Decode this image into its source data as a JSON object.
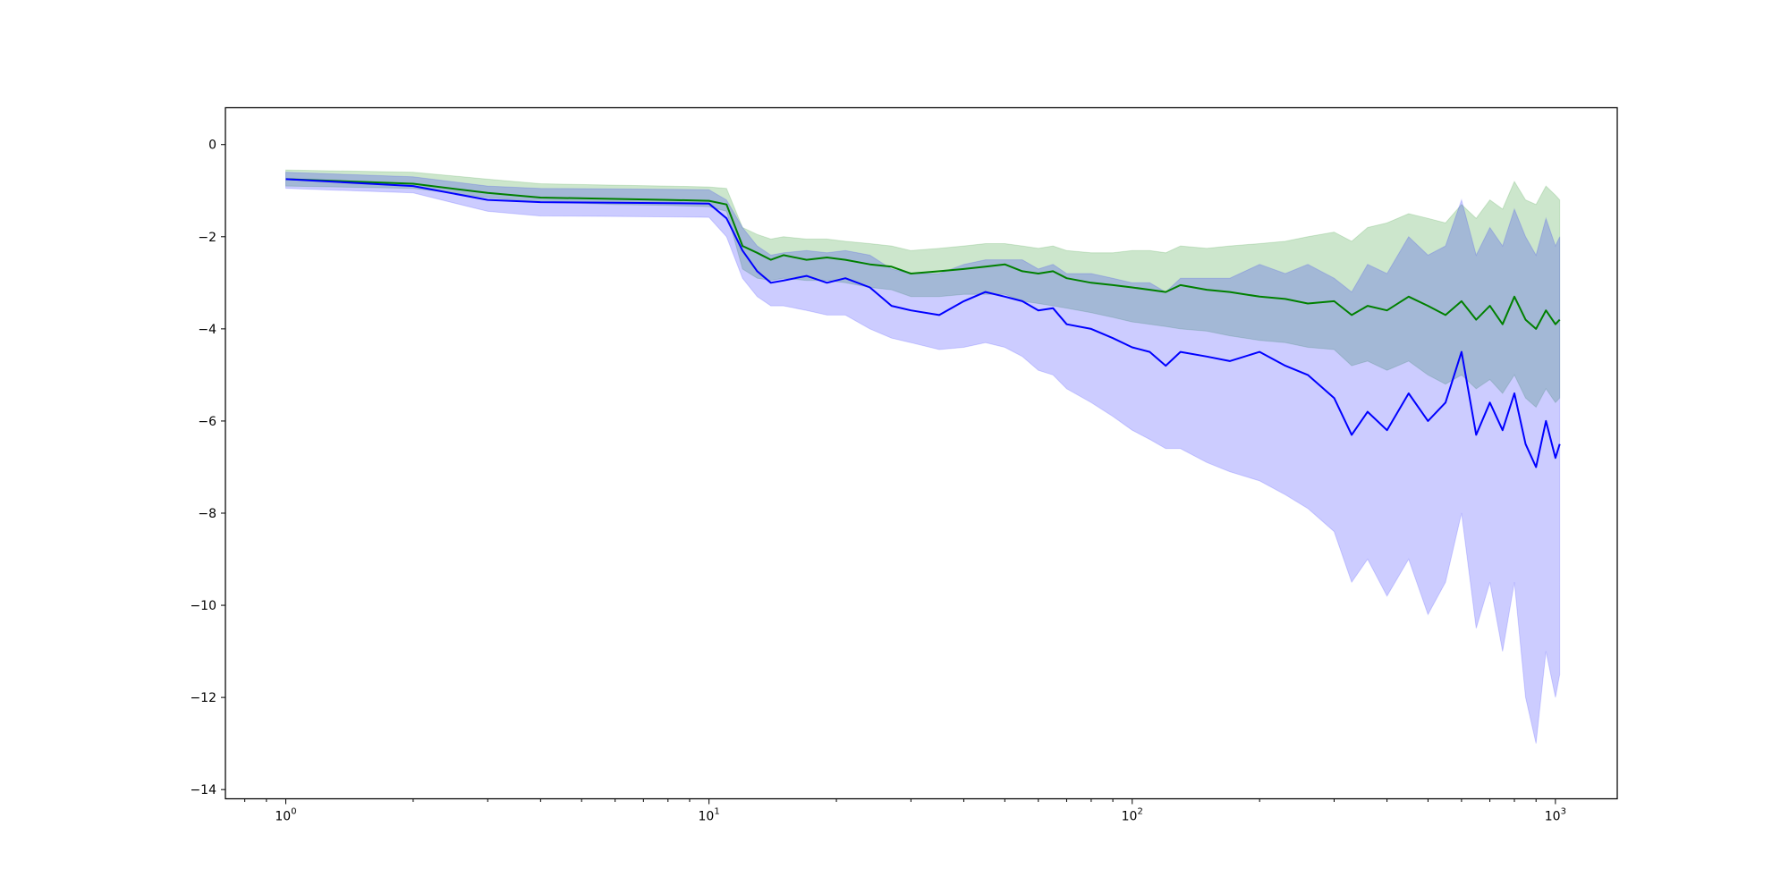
{
  "colors": {
    "green_line": "#008000",
    "green_band": "#008000",
    "blue_line": "#0000ff",
    "blue_band": "#0000ff",
    "background": "#ffffff"
  },
  "chart_data": {
    "type": "line",
    "title": "",
    "xlabel": "",
    "ylabel": "",
    "xscale": "log",
    "xlim": [
      0.72,
      1400
    ],
    "ylim": [
      -14.2,
      0.8
    ],
    "grid": false,
    "legend": "none",
    "x_tick_labels": [
      {
        "base": "10",
        "exp": "0",
        "value": 1
      },
      {
        "base": "10",
        "exp": "1",
        "value": 10
      },
      {
        "base": "10",
        "exp": "2",
        "value": 100
      },
      {
        "base": "10",
        "exp": "3",
        "value": 1000
      }
    ],
    "y_ticks": [
      0,
      -2,
      -4,
      -6,
      -8,
      -10,
      -12,
      -14
    ],
    "series": [
      {
        "color": "#008000",
        "x": [
          1,
          2,
          3,
          4,
          6,
          8,
          10,
          11,
          12,
          13,
          14,
          15,
          17,
          19,
          21,
          24,
          27,
          30,
          35,
          40,
          45,
          50,
          55,
          60,
          65,
          70,
          80,
          90,
          100,
          110,
          120,
          130,
          150,
          170,
          200,
          230,
          260,
          300,
          330,
          360,
          400,
          450,
          500,
          550,
          600,
          650,
          700,
          750,
          800,
          850,
          900,
          950,
          1000,
          1024
        ],
        "mean": [
          -0.75,
          -0.85,
          -1.05,
          -1.15,
          -1.18,
          -1.2,
          -1.22,
          -1.3,
          -2.2,
          -2.35,
          -2.5,
          -2.4,
          -2.5,
          -2.45,
          -2.5,
          -2.6,
          -2.65,
          -2.8,
          -2.75,
          -2.7,
          -2.65,
          -2.6,
          -2.75,
          -2.8,
          -2.75,
          -2.9,
          -3.0,
          -3.05,
          -3.1,
          -3.15,
          -3.2,
          -3.05,
          -3.15,
          -3.2,
          -3.3,
          -3.35,
          -3.45,
          -3.4,
          -3.7,
          -3.5,
          -3.6,
          -3.3,
          -3.5,
          -3.7,
          -3.4,
          -3.8,
          -3.5,
          -3.9,
          -3.3,
          -3.8,
          -4.0,
          -3.6,
          -3.9,
          -3.8
        ],
        "lower": [
          -0.9,
          -0.95,
          -1.15,
          -1.25,
          -1.3,
          -1.32,
          -1.35,
          -1.45,
          -2.7,
          -2.9,
          -2.95,
          -2.9,
          -2.95,
          -2.95,
          -3.0,
          -3.1,
          -3.15,
          -3.3,
          -3.3,
          -3.25,
          -3.25,
          -3.25,
          -3.4,
          -3.45,
          -3.5,
          -3.55,
          -3.65,
          -3.75,
          -3.85,
          -3.9,
          -3.95,
          -4.0,
          -4.05,
          -4.15,
          -4.25,
          -4.3,
          -4.4,
          -4.45,
          -4.8,
          -4.7,
          -4.9,
          -4.7,
          -5.0,
          -5.2,
          -5.0,
          -5.3,
          -5.1,
          -5.4,
          -5.0,
          -5.5,
          -5.7,
          -5.3,
          -5.6,
          -5.5
        ],
        "upper": [
          -0.55,
          -0.6,
          -0.75,
          -0.85,
          -0.88,
          -0.9,
          -0.92,
          -0.95,
          -1.8,
          -1.95,
          -2.05,
          -2.0,
          -2.05,
          -2.05,
          -2.1,
          -2.15,
          -2.2,
          -2.3,
          -2.25,
          -2.2,
          -2.15,
          -2.15,
          -2.2,
          -2.25,
          -2.2,
          -2.3,
          -2.35,
          -2.35,
          -2.3,
          -2.3,
          -2.35,
          -2.2,
          -2.25,
          -2.2,
          -2.15,
          -2.1,
          -2.0,
          -1.9,
          -2.1,
          -1.8,
          -1.7,
          -1.5,
          -1.6,
          -1.7,
          -1.3,
          -1.6,
          -1.2,
          -1.4,
          -0.8,
          -1.2,
          -1.3,
          -0.9,
          -1.1,
          -1.2
        ]
      },
      {
        "color": "#0000ff",
        "x": [
          1,
          2,
          3,
          4,
          6,
          8,
          10,
          11,
          12,
          13,
          14,
          15,
          17,
          19,
          21,
          24,
          27,
          30,
          35,
          40,
          45,
          50,
          55,
          60,
          65,
          70,
          80,
          90,
          100,
          110,
          120,
          130,
          150,
          170,
          200,
          230,
          260,
          300,
          330,
          360,
          400,
          450,
          500,
          550,
          600,
          650,
          700,
          750,
          800,
          850,
          900,
          950,
          1000,
          1024
        ],
        "mean": [
          -0.75,
          -0.9,
          -1.2,
          -1.25,
          -1.26,
          -1.27,
          -1.28,
          -1.6,
          -2.3,
          -2.75,
          -3.0,
          -2.95,
          -2.85,
          -3.0,
          -2.9,
          -3.1,
          -3.5,
          -3.6,
          -3.7,
          -3.4,
          -3.2,
          -3.3,
          -3.4,
          -3.6,
          -3.55,
          -3.9,
          -4.0,
          -4.2,
          -4.4,
          -4.5,
          -4.8,
          -4.5,
          -4.6,
          -4.7,
          -4.5,
          -4.8,
          -5.0,
          -5.5,
          -6.3,
          -5.8,
          -6.2,
          -5.4,
          -6.0,
          -5.6,
          -4.5,
          -6.3,
          -5.6,
          -6.2,
          -5.4,
          -6.5,
          -7.0,
          -6.0,
          -6.8,
          -6.5
        ],
        "lower": [
          -0.95,
          -1.05,
          -1.45,
          -1.55,
          -1.56,
          -1.57,
          -1.58,
          -2.0,
          -2.9,
          -3.3,
          -3.5,
          -3.5,
          -3.6,
          -3.7,
          -3.7,
          -4.0,
          -4.2,
          -4.3,
          -4.45,
          -4.4,
          -4.3,
          -4.4,
          -4.6,
          -4.9,
          -5.0,
          -5.3,
          -5.6,
          -5.9,
          -6.2,
          -6.4,
          -6.6,
          -6.6,
          -6.9,
          -7.1,
          -7.3,
          -7.6,
          -7.9,
          -8.4,
          -9.5,
          -9.0,
          -9.8,
          -9.0,
          -10.2,
          -9.5,
          -8.0,
          -10.5,
          -9.5,
          -11.0,
          -9.5,
          -12.0,
          -13.0,
          -11.0,
          -12.0,
          -11.5
        ],
        "upper": [
          -0.6,
          -0.7,
          -0.9,
          -0.95,
          -0.96,
          -0.97,
          -0.98,
          -1.2,
          -1.8,
          -2.2,
          -2.4,
          -2.35,
          -2.3,
          -2.35,
          -2.3,
          -2.4,
          -2.7,
          -2.8,
          -2.8,
          -2.6,
          -2.5,
          -2.5,
          -2.5,
          -2.7,
          -2.6,
          -2.8,
          -2.8,
          -2.9,
          -3.0,
          -3.0,
          -3.2,
          -2.9,
          -2.9,
          -2.9,
          -2.6,
          -2.8,
          -2.6,
          -2.9,
          -3.2,
          -2.6,
          -2.8,
          -2.0,
          -2.4,
          -2.2,
          -1.2,
          -2.4,
          -1.8,
          -2.2,
          -1.4,
          -2.0,
          -2.4,
          -1.6,
          -2.2,
          -2.0
        ]
      }
    ]
  }
}
